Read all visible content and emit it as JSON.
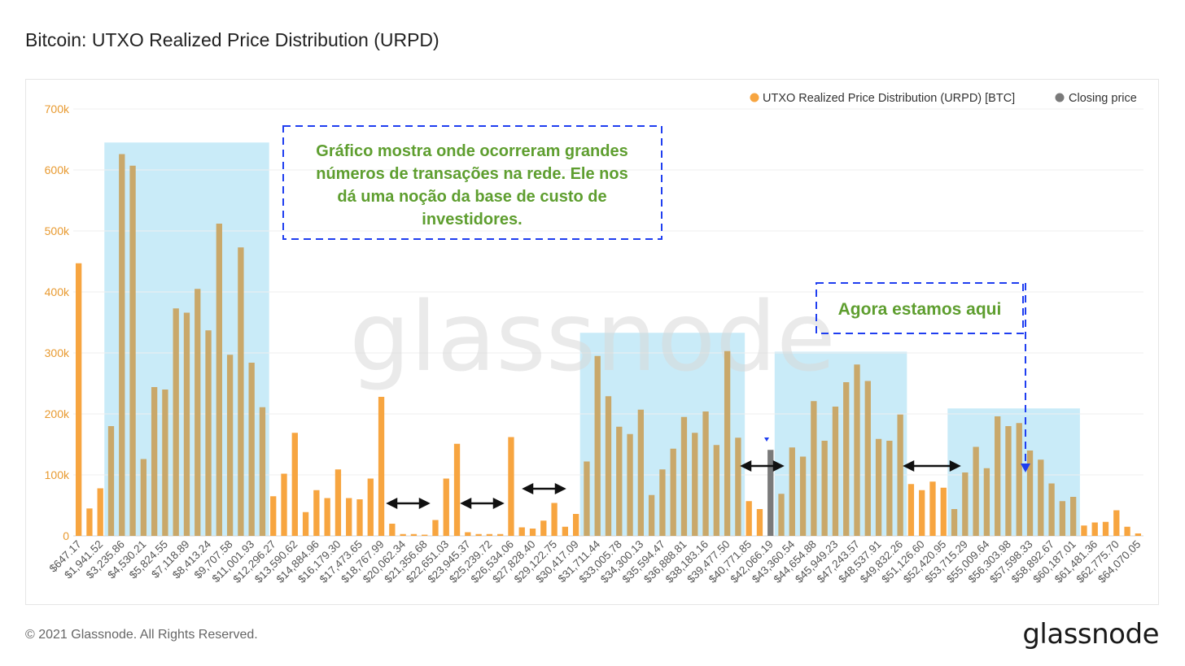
{
  "header": {
    "title": "Bitcoin: UTXO Realized Price Distribution (URPD)"
  },
  "footer": {
    "copyright": "© 2021 Glassnode. All Rights Reserved.",
    "logo": "glassnode"
  },
  "watermark": "glassnode",
  "colors": {
    "bar": "#f7a540",
    "closing": "#7a7a7a",
    "highlight": "#bfe8f7",
    "note_text": "#5e9e2f",
    "note_border": "#1f3ef0",
    "axis_text": "#e89a30"
  },
  "annotations": {
    "main_note": [
      "Gráfico mostra onde ocorreram grandes",
      "números de transações na rede. Ele nos",
      "dá uma noção da base de custo de",
      "investidores."
    ],
    "here_note": "Agora estamos aqui"
  },
  "chart_data": {
    "type": "bar",
    "title": "Bitcoin: UTXO Realized Price Distribution (URPD)",
    "ylim": [
      0,
      700000
    ],
    "yticks": [
      0,
      100000,
      200000,
      300000,
      400000,
      500000,
      600000,
      700000
    ],
    "ytick_labels": [
      "0",
      "100k",
      "200k",
      "300k",
      "400k",
      "500k",
      "600k",
      "700k"
    ],
    "grid": true,
    "legend_position": "top-right",
    "legend": [
      "UTXO Realized Price Distribution (URPD) [BTC]",
      "Closing price"
    ],
    "closing_index": 64,
    "tick_labels": [
      "$647.17",
      "$1,941.52",
      "$3,235.86",
      "$4,530.21",
      "$5,824.55",
      "$7,118.89",
      "$8,413.24",
      "$9,707.58",
      "$11,001.93",
      "$12,296.27",
      "$13,590.62",
      "$14,884.96",
      "$16,179.30",
      "$17,473.65",
      "$18,767.99",
      "$20,062.34",
      "$21,356.68",
      "$22,651.03",
      "$23,945.37",
      "$25,239.72",
      "$26,534.06",
      "$27,828.40",
      "$29,122.75",
      "$30,417.09",
      "$31,711.44",
      "$33,005.78",
      "$34,300.13",
      "$35,594.47",
      "$36,888.81",
      "$38,183.16",
      "$39,477.50",
      "$40,771.85",
      "$42,066.19",
      "$43,360.54",
      "$44,654.88",
      "$45,949.23",
      "$47,243.57",
      "$48,537.91",
      "$49,832.26",
      "$51,126.60",
      "$52,420.95",
      "$53,715.29",
      "$55,009.64",
      "$56,303.98",
      "$57,598.33",
      "$58,892.67",
      "$60,187.01",
      "$61,481.36",
      "$62,775.70",
      "$64,070.05"
    ],
    "values": [
      447000,
      45000,
      78000,
      180000,
      626000,
      607000,
      126000,
      244000,
      240000,
      373000,
      366000,
      405000,
      337000,
      512000,
      297000,
      473000,
      284000,
      211000,
      65000,
      102000,
      169000,
      39000,
      75000,
      62000,
      109000,
      62000,
      60000,
      94000,
      228000,
      20000,
      3000,
      3000,
      2000,
      26000,
      94000,
      151000,
      6000,
      3000,
      3000,
      3000,
      162000,
      14000,
      12000,
      25000,
      54000,
      15000,
      36000,
      122000,
      295000,
      229000,
      179000,
      167000,
      207000,
      67000,
      109000,
      143000,
      195000,
      169000,
      204000,
      149000,
      303000,
      161000,
      57000,
      44000,
      141000,
      69000,
      145000,
      130000,
      221000,
      156000,
      212000,
      252000,
      281000,
      254000,
      159000,
      156000,
      199000,
      85000,
      75000,
      89000,
      79000,
      44000,
      104000,
      146000,
      111000,
      196000,
      180000,
      185000,
      140000,
      125000,
      86000,
      57000,
      64000,
      17000,
      22000,
      23000,
      42000,
      15000,
      4000
    ]
  }
}
